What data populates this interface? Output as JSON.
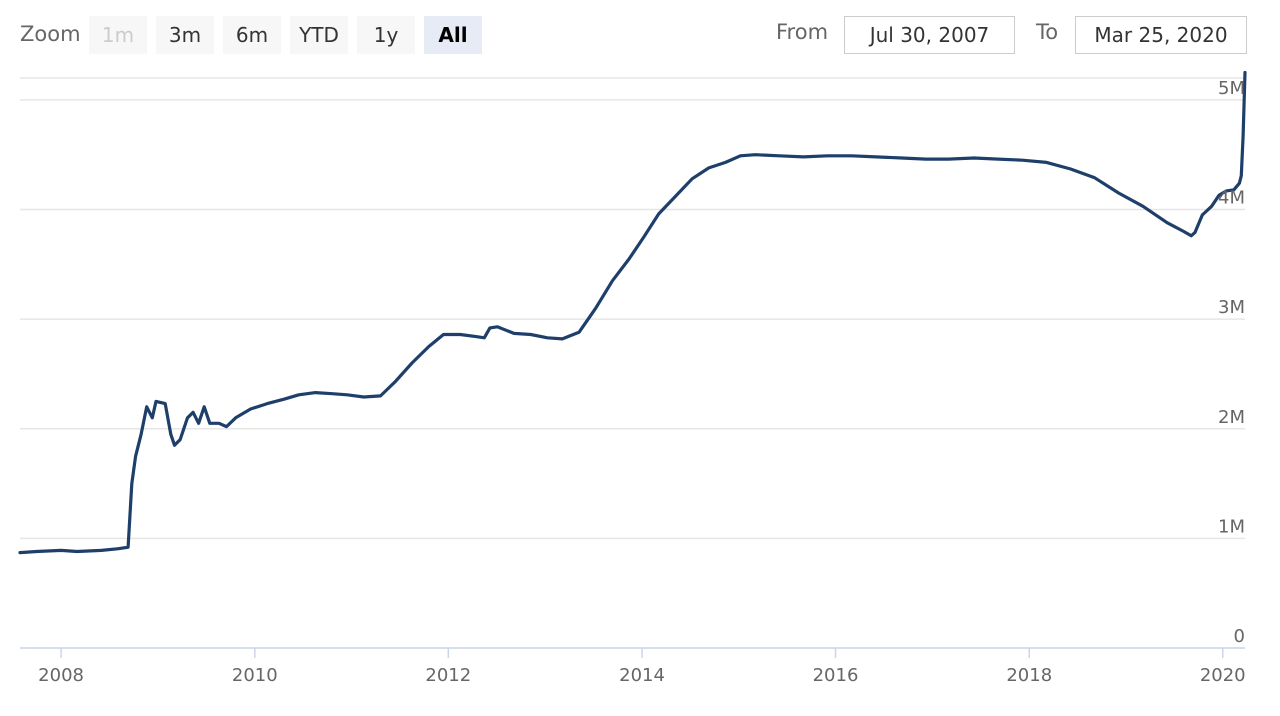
{
  "toolbar": {
    "zoom_label": "Zoom",
    "buttons": [
      {
        "label": "1m",
        "state": "disabled"
      },
      {
        "label": "3m",
        "state": "normal"
      },
      {
        "label": "6m",
        "state": "normal"
      },
      {
        "label": "YTD",
        "state": "normal"
      },
      {
        "label": "1y",
        "state": "normal"
      },
      {
        "label": "All",
        "state": "active"
      }
    ],
    "from_label": "From",
    "from_value": "Jul 30, 2007",
    "to_label": "To",
    "to_value": "Mar 25, 2020"
  },
  "colors": {
    "line": "#1f3f6b",
    "grid": "#e6e6e6",
    "active_button": "#e6ebf5"
  },
  "chart_data": {
    "type": "line",
    "title": "",
    "xlabel": "",
    "ylabel": "",
    "grid": true,
    "ylim": [
      0,
      5200000
    ],
    "xlim": [
      "2007-07-30",
      "2020-03-25"
    ],
    "y_ticks": [
      {
        "value": 0,
        "label": "0"
      },
      {
        "value": 1000000,
        "label": "1M"
      },
      {
        "value": 2000000,
        "label": "2M"
      },
      {
        "value": 3000000,
        "label": "3M"
      },
      {
        "value": 4000000,
        "label": "4M"
      },
      {
        "value": 5000000,
        "label": "5M"
      }
    ],
    "x_ticks": [
      {
        "value": "2008-01-01",
        "label": "2008"
      },
      {
        "value": "2010-01-01",
        "label": "2010"
      },
      {
        "value": "2012-01-01",
        "label": "2012"
      },
      {
        "value": "2014-01-01",
        "label": "2014"
      },
      {
        "value": "2016-01-01",
        "label": "2016"
      },
      {
        "value": "2018-01-01",
        "label": "2018"
      },
      {
        "value": "2020-01-01",
        "label": "2020"
      }
    ],
    "series": [
      {
        "points": [
          [
            "2007-07-30",
            870000
          ],
          [
            "2007-10-01",
            880000
          ],
          [
            "2008-01-01",
            890000
          ],
          [
            "2008-03-01",
            880000
          ],
          [
            "2008-06-01",
            890000
          ],
          [
            "2008-08-01",
            905000
          ],
          [
            "2008-09-10",
            920000
          ],
          [
            "2008-09-24",
            1500000
          ],
          [
            "2008-10-08",
            1750000
          ],
          [
            "2008-10-29",
            1950000
          ],
          [
            "2008-11-19",
            2200000
          ],
          [
            "2008-12-10",
            2100000
          ],
          [
            "2008-12-24",
            2250000
          ],
          [
            "2009-01-28",
            2230000
          ],
          [
            "2009-02-18",
            1950000
          ],
          [
            "2009-03-04",
            1850000
          ],
          [
            "2009-03-25",
            1900000
          ],
          [
            "2009-04-22",
            2100000
          ],
          [
            "2009-05-13",
            2150000
          ],
          [
            "2009-06-03",
            2050000
          ],
          [
            "2009-06-24",
            2200000
          ],
          [
            "2009-07-15",
            2050000
          ],
          [
            "2009-08-19",
            2050000
          ],
          [
            "2009-09-16",
            2020000
          ],
          [
            "2009-10-21",
            2100000
          ],
          [
            "2009-12-16",
            2180000
          ],
          [
            "2010-02-17",
            2230000
          ],
          [
            "2010-04-21",
            2270000
          ],
          [
            "2010-06-16",
            2310000
          ],
          [
            "2010-08-18",
            2330000
          ],
          [
            "2010-10-20",
            2320000
          ],
          [
            "2010-12-15",
            2310000
          ],
          [
            "2011-02-16",
            2290000
          ],
          [
            "2011-04-20",
            2300000
          ],
          [
            "2011-06-15",
            2430000
          ],
          [
            "2011-08-17",
            2600000
          ],
          [
            "2011-10-19",
            2750000
          ],
          [
            "2011-12-14",
            2860000
          ],
          [
            "2012-02-15",
            2860000
          ],
          [
            "2012-04-18",
            2840000
          ],
          [
            "2012-05-16",
            2830000
          ],
          [
            "2012-06-06",
            2920000
          ],
          [
            "2012-07-04",
            2930000
          ],
          [
            "2012-09-05",
            2870000
          ],
          [
            "2012-11-07",
            2860000
          ],
          [
            "2013-01-09",
            2830000
          ],
          [
            "2013-03-06",
            2820000
          ],
          [
            "2013-05-08",
            2880000
          ],
          [
            "2013-07-10",
            3100000
          ],
          [
            "2013-09-11",
            3350000
          ],
          [
            "2013-11-13",
            3550000
          ],
          [
            "2014-01-08",
            3750000
          ],
          [
            "2014-03-05",
            3960000
          ],
          [
            "2014-05-07",
            4120000
          ],
          [
            "2014-07-09",
            4280000
          ],
          [
            "2014-09-10",
            4380000
          ],
          [
            "2014-11-12",
            4430000
          ],
          [
            "2015-01-07",
            4490000
          ],
          [
            "2015-03-04",
            4500000
          ],
          [
            "2015-06-03",
            4490000
          ],
          [
            "2015-09-02",
            4480000
          ],
          [
            "2015-12-02",
            4490000
          ],
          [
            "2016-03-02",
            4490000
          ],
          [
            "2016-06-01",
            4480000
          ],
          [
            "2016-09-07",
            4470000
          ],
          [
            "2016-12-07",
            4460000
          ],
          [
            "2017-03-01",
            4460000
          ],
          [
            "2017-06-07",
            4470000
          ],
          [
            "2017-09-06",
            4460000
          ],
          [
            "2017-12-06",
            4450000
          ],
          [
            "2018-03-07",
            4430000
          ],
          [
            "2018-06-06",
            4370000
          ],
          [
            "2018-09-05",
            4290000
          ],
          [
            "2018-12-05",
            4150000
          ],
          [
            "2019-03-06",
            4030000
          ],
          [
            "2019-06-05",
            3880000
          ],
          [
            "2019-08-07",
            3800000
          ],
          [
            "2019-09-04",
            3760000
          ],
          [
            "2019-09-18",
            3790000
          ],
          [
            "2019-10-16",
            3950000
          ],
          [
            "2019-11-20",
            4030000
          ],
          [
            "2019-12-18",
            4130000
          ],
          [
            "2020-01-15",
            4170000
          ],
          [
            "2020-02-12",
            4180000
          ],
          [
            "2020-03-04",
            4240000
          ],
          [
            "2020-03-11",
            4310000
          ],
          [
            "2020-03-18",
            4670000
          ],
          [
            "2020-03-25",
            5250000
          ]
        ]
      }
    ]
  }
}
